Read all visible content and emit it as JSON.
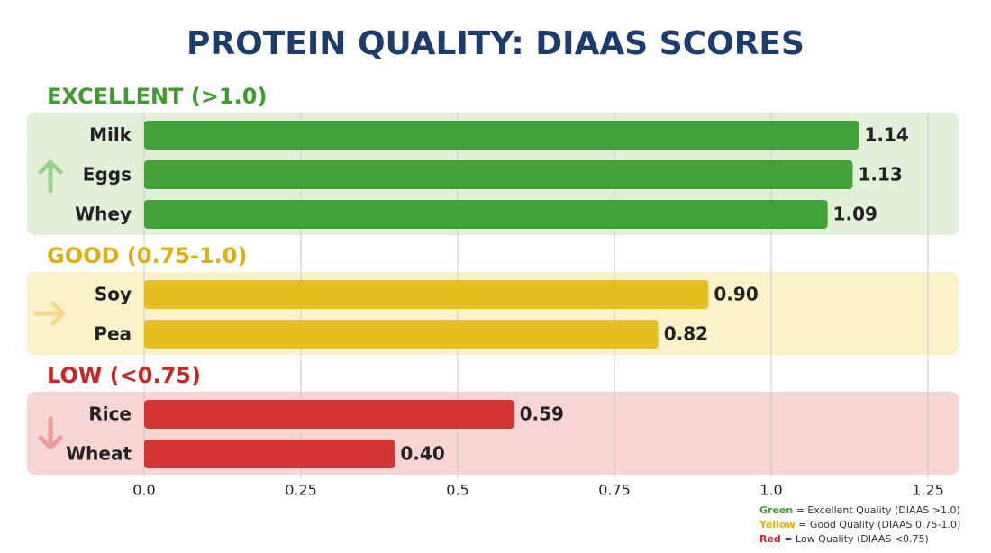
{
  "chart_data": {
    "type": "bar",
    "orientation": "horizontal",
    "title": "PROTEIN QUALITY: DIAAS SCORES",
    "xlim": [
      0,
      1.25
    ],
    "xticks": [
      {
        "value": 0,
        "label": "0.0"
      },
      0.25,
      0.5,
      0.75,
      {
        "value": 1,
        "label": "1.0"
      },
      1.25
    ],
    "grid": true,
    "groups": [
      {
        "name": "EXCELLENT (>1.0)",
        "title_color": "#3f9a2f",
        "color": "#43a13a",
        "background": "#e2f0da",
        "categories": [
          "Milk",
          "Eggs",
          "Whey"
        ],
        "values": [
          1.14,
          1.13,
          1.09
        ],
        "value_labels": [
          "1.14",
          "1.13",
          "1.09"
        ]
      },
      {
        "name": "GOOD (0.75-1.0)",
        "title_color": "#dcb10f",
        "color": "#e6c020",
        "background": "#fbf2c9",
        "categories": [
          "Soy",
          "Pea"
        ],
        "values": [
          0.9,
          0.82
        ],
        "value_labels": [
          "0.90",
          "0.82"
        ]
      },
      {
        "name": "LOW (<0.75)",
        "title_color": "#c62828",
        "color": "#d43432",
        "background": "#f8d5d5",
        "categories": [
          "Rice",
          "Wheat"
        ],
        "values": [
          0.59,
          0.4
        ],
        "value_labels": [
          "0.59",
          "0.40"
        ]
      }
    ],
    "legend": [
      {
        "key": "Green",
        "text": "= Excellent Quality (DIAAS >1.0)"
      },
      {
        "key": "Yellow",
        "text": "= Good Quality (DIAAS 0.75-1.0)"
      },
      {
        "key": "Red",
        "text": "= Low Quality (DIAAS <0.75)"
      }
    ]
  }
}
